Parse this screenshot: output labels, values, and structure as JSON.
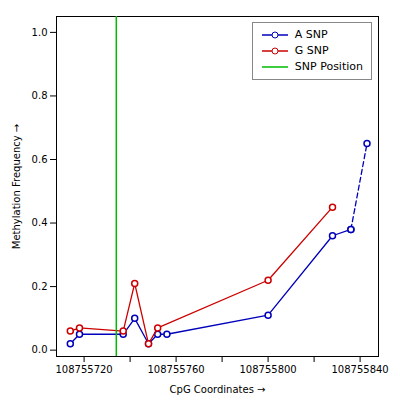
{
  "chart_data": {
    "type": "line",
    "xlabel": "CpG Coordinates",
    "ylabel": "Methylation Frequency",
    "xlim": [
      108755708,
      108755848
    ],
    "ylim": [
      -0.02,
      1.05
    ],
    "xticks": [
      108755720,
      {
        "value": 108755740,
        "label": null
      },
      108755760,
      {
        "value": 108755780,
        "label": null
      },
      108755800,
      {
        "value": 108755820,
        "label": null
      },
      108755840
    ],
    "yticks": [
      {
        "value": 0.0,
        "label": "0.0"
      },
      0.2,
      0.4,
      0.6,
      0.8,
      {
        "value": 1.0,
        "label": "1.0"
      }
    ],
    "grid": false,
    "legend": "upper right",
    "series": [
      {
        "name": "A SNP",
        "color": "#0000bb",
        "marker": "circle",
        "line_style": "solid",
        "x": [
          108755714,
          108755718,
          108755737,
          108755742,
          108755748,
          108755752,
          108755756,
          108755800,
          108755828,
          108755836
        ],
        "values": [
          0.02,
          0.05,
          0.05,
          0.1,
          0.02,
          0.05,
          0.05,
          0.11,
          0.36,
          0.38
        ]
      },
      {
        "color": "#0000bb",
        "marker": "circle",
        "line_style": "dashed",
        "x": [
          108755836,
          108755843
        ],
        "values": [
          0.38,
          0.65
        ]
      },
      {
        "name": "G SNP",
        "color": "#cc0000",
        "marker": "circle",
        "line_style": "solid",
        "x": [
          108755714,
          108755718,
          108755737,
          108755742,
          108755748,
          108755752,
          108755800,
          108755828
        ],
        "values": [
          0.06,
          0.07,
          0.06,
          0.21,
          0.02,
          0.07,
          0.22,
          0.45
        ]
      },
      {
        "name": "SNP Position",
        "type": "vline",
        "color": "#00bb00",
        "line_style": "solid",
        "x": [
          108755734
        ]
      }
    ]
  }
}
